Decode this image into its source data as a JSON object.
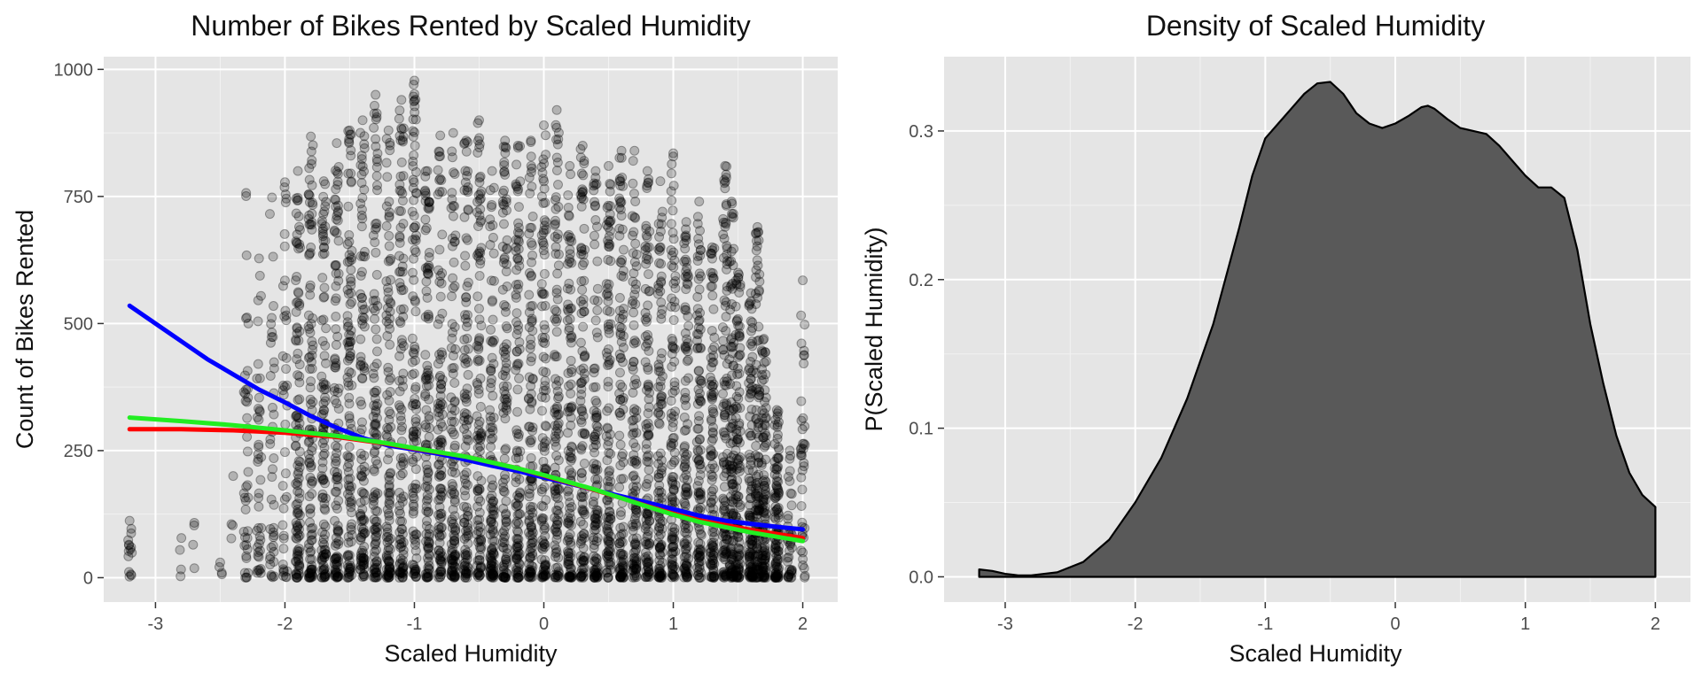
{
  "chart_data": [
    {
      "type": "scatter",
      "title": "Number of Bikes Rented by Scaled Humidity",
      "xlabel": "Scaled Humidity",
      "ylabel": "Count of Bikes Rented",
      "xlim": [
        -3.4,
        2.27
      ],
      "ylim": [
        -48,
        1025
      ],
      "x_ticks": [
        -3,
        -2,
        -1,
        0,
        1,
        2
      ],
      "x_tick_labels": [
        "-3",
        "-2",
        "-1",
        "0",
        "1",
        "2"
      ],
      "y_ticks": [
        0,
        250,
        500,
        750,
        1000
      ],
      "y_tick_labels": [
        "0",
        "250",
        "500",
        "750",
        "1000"
      ],
      "grid": true,
      "legend": "none",
      "points": {
        "x_levels": [
          -3.2,
          -2.8,
          -2.7,
          -2.5,
          -2.4,
          -2.3,
          -2.2,
          -2.1,
          -2.0,
          -1.9,
          -1.8,
          -1.7,
          -1.6,
          -1.5,
          -1.4,
          -1.3,
          -1.2,
          -1.1,
          -1.0,
          -0.9,
          -0.8,
          -0.7,
          -0.6,
          -0.5,
          -0.4,
          -0.3,
          -0.2,
          -0.1,
          0.0,
          0.1,
          0.2,
          0.3,
          0.4,
          0.5,
          0.6,
          0.7,
          0.8,
          0.9,
          1.0,
          1.1,
          1.2,
          1.3,
          1.4,
          1.45,
          1.5,
          1.6,
          1.65,
          1.7,
          1.8,
          1.9,
          2.0
        ],
        "y_max": [
          112,
          78,
          108,
          30,
          200,
          757,
          628,
          748,
          778,
          800,
          868,
          780,
          855,
          880,
          900,
          950,
          880,
          940,
          978,
          800,
          870,
          875,
          860,
          900,
          800,
          860,
          850,
          860,
          890,
          920,
          810,
          850,
          800,
          810,
          840,
          840,
          800,
          780,
          835,
          700,
          740,
          650,
          810,
          740,
          600,
          560,
          690,
          470,
          330,
          250,
          585
        ]
      },
      "series": [
        {
          "color": "#0000ff",
          "x": [
            -3.2,
            -3.0,
            -2.8,
            -2.6,
            -2.4,
            -2.2,
            -2.0,
            -1.8,
            -1.6,
            -1.4,
            -1.2,
            -1.0,
            -0.8,
            -0.6,
            -0.4,
            -0.2,
            0.0,
            0.2,
            0.4,
            0.6,
            0.8,
            1.0,
            1.2,
            1.4,
            1.6,
            1.8,
            2.0
          ],
          "values": [
            535,
            500,
            465,
            430,
            400,
            370,
            345,
            318,
            295,
            275,
            260,
            252,
            243,
            232,
            220,
            210,
            197,
            185,
            172,
            160,
            148,
            135,
            122,
            112,
            106,
            100,
            95
          ]
        },
        {
          "color": "#ff0000",
          "x": [
            -3.2,
            -2.8,
            -2.4,
            -2.0,
            -1.6,
            -1.2,
            -1.0,
            -0.6,
            -0.2,
            0.0,
            0.4,
            0.8,
            1.0,
            1.2,
            1.6,
            2.0
          ],
          "values": [
            292,
            292,
            290,
            285,
            277,
            263,
            254,
            238,
            215,
            201,
            172,
            141,
            126,
            113,
            94,
            78
          ]
        },
        {
          "color": "#22ee22",
          "x": [
            -3.2,
            -2.8,
            -2.4,
            -2.0,
            -1.6,
            -1.2,
            -1.0,
            -0.6,
            -0.2,
            0.0,
            0.4,
            0.8,
            1.0,
            1.2,
            1.6,
            2.0
          ],
          "values": [
            315,
            308,
            300,
            290,
            279,
            264,
            255,
            238,
            215,
            202,
            173,
            140,
            124,
            110,
            89,
            72
          ]
        }
      ]
    },
    {
      "type": "area",
      "title": "Density of Scaled Humidity",
      "xlabel": "Scaled Humidity",
      "ylabel": "P(Scaled Humidity)",
      "xlim": [
        -3.47,
        2.27
      ],
      "ylim": [
        -0.017,
        0.35
      ],
      "x_ticks": [
        -3,
        -2,
        -1,
        0,
        1,
        2
      ],
      "x_tick_labels": [
        "-3",
        "-2",
        "-1",
        "0",
        "1",
        "2"
      ],
      "y_ticks": [
        0.0,
        0.1,
        0.2,
        0.3
      ],
      "y_tick_labels": [
        "0.0",
        "0.1",
        "0.2",
        "0.3"
      ],
      "grid": true,
      "legend": "none",
      "fill_color": "#595959",
      "line_color": "#000000",
      "series": [
        {
          "x": [
            -3.2,
            -3.1,
            -3.0,
            -2.9,
            -2.8,
            -2.6,
            -2.4,
            -2.2,
            -2.0,
            -1.8,
            -1.6,
            -1.4,
            -1.2,
            -1.1,
            -1.0,
            -0.9,
            -0.8,
            -0.7,
            -0.6,
            -0.5,
            -0.4,
            -0.3,
            -0.2,
            -0.1,
            0.0,
            0.1,
            0.2,
            0.25,
            0.3,
            0.4,
            0.5,
            0.6,
            0.7,
            0.8,
            0.9,
            1.0,
            1.1,
            1.2,
            1.3,
            1.4,
            1.5,
            1.6,
            1.7,
            1.8,
            1.9,
            2.0
          ],
          "values": [
            0.005,
            0.004,
            0.002,
            0.001,
            0.001,
            0.003,
            0.01,
            0.025,
            0.05,
            0.08,
            0.12,
            0.17,
            0.235,
            0.27,
            0.295,
            0.305,
            0.315,
            0.325,
            0.332,
            0.333,
            0.325,
            0.312,
            0.305,
            0.302,
            0.305,
            0.31,
            0.316,
            0.317,
            0.315,
            0.308,
            0.302,
            0.3,
            0.298,
            0.29,
            0.28,
            0.27,
            0.262,
            0.262,
            0.255,
            0.22,
            0.17,
            0.13,
            0.095,
            0.07,
            0.055,
            0.047
          ]
        }
      ]
    }
  ]
}
